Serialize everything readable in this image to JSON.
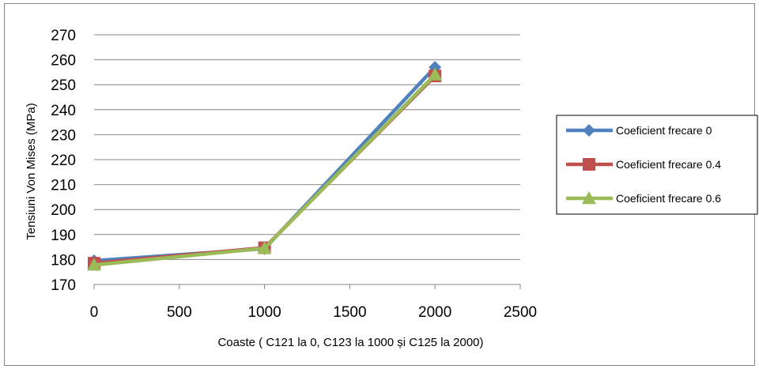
{
  "chart_data": {
    "type": "line",
    "title": "",
    "xlabel": "Coaste ( C121 la 0, C123 la 1000 și  C125  la  2000)",
    "ylabel": "Tensiuni Von Mises (MPa)",
    "xlim": [
      0,
      2500
    ],
    "ylim": [
      170,
      270
    ],
    "x_ticks": [
      0,
      500,
      1000,
      1500,
      2000,
      2500
    ],
    "y_ticks": [
      170,
      180,
      190,
      200,
      210,
      220,
      230,
      240,
      250,
      260,
      270
    ],
    "grid": "horizontal",
    "legend_position": "right",
    "x": [
      0,
      1000,
      2000
    ],
    "series": [
      {
        "name": "Coeficient frecare 0",
        "values": [
          179.5,
          184.3,
          257
        ],
        "color": "#4F81BD",
        "marker": "diamond"
      },
      {
        "name": "Coeficient frecare 0.4",
        "values": [
          178.5,
          184.7,
          253.5
        ],
        "color": "#C0504D",
        "marker": "square"
      },
      {
        "name": "Coeficient frecare 0.6",
        "values": [
          177.8,
          184.5,
          254
        ],
        "color": "#9BBB59",
        "marker": "triangle"
      }
    ]
  }
}
